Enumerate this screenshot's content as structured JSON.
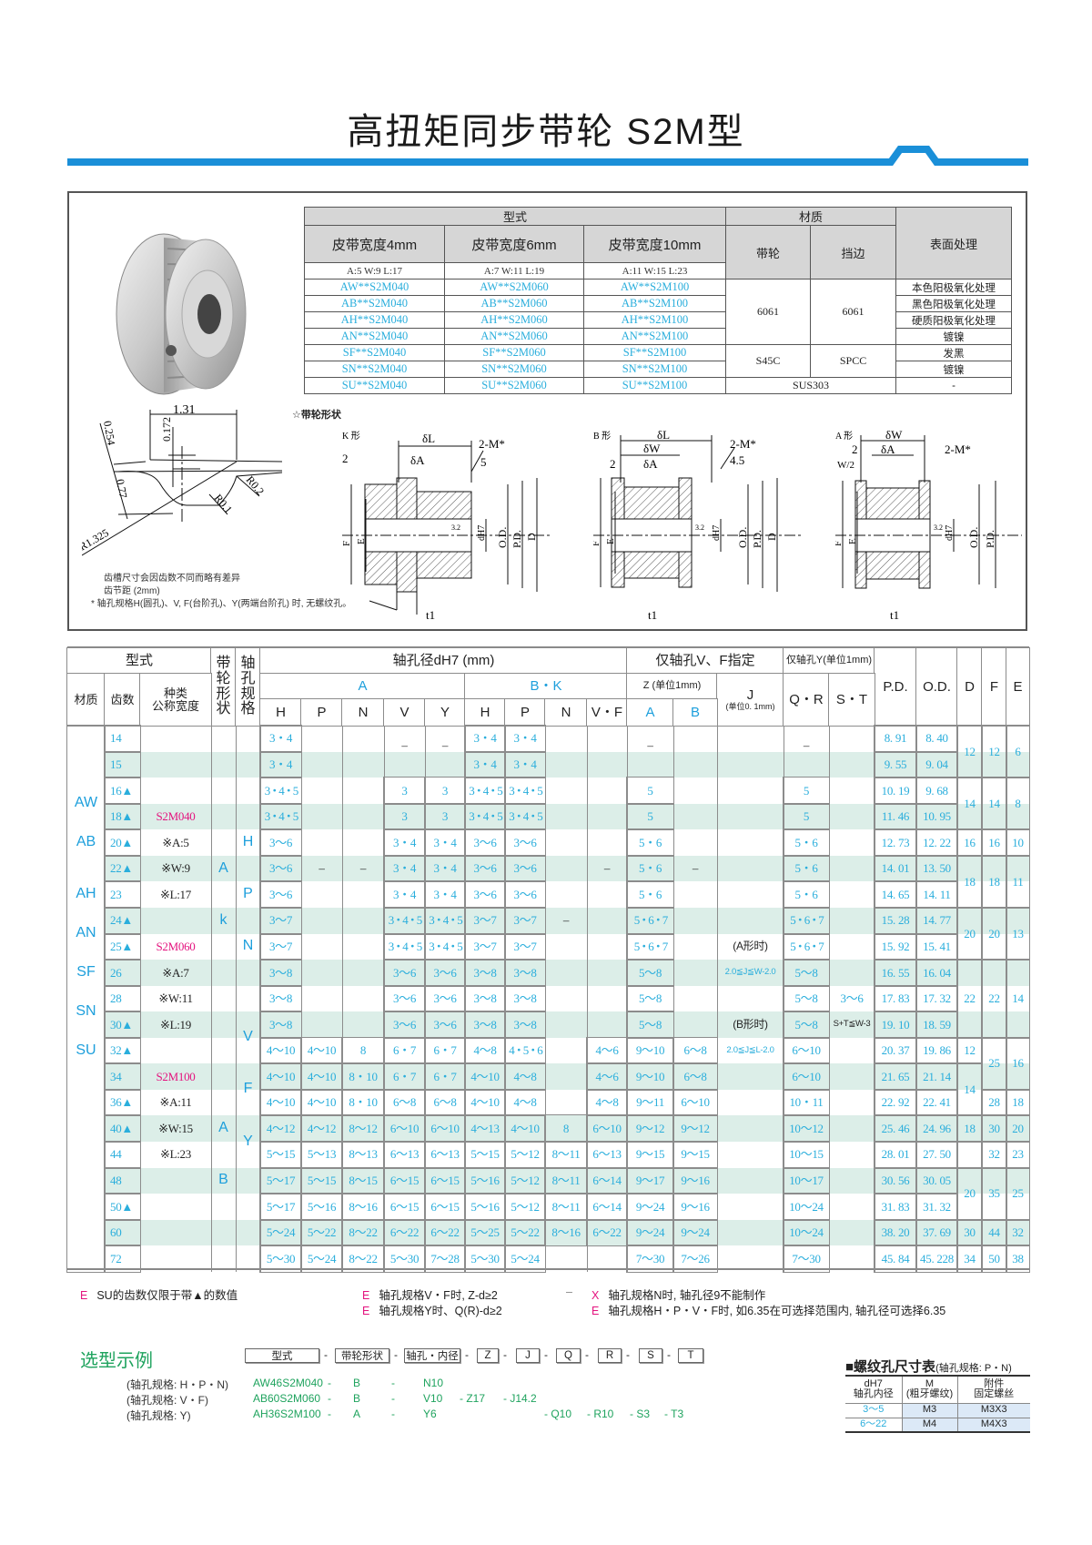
{
  "title": "高扭矩同步带轮 S2M型",
  "colors": {
    "accent_blue": "#1a8fd8",
    "value_cyan": "#2aaedc",
    "code_pink": "#e4147f",
    "stripe": "#dceee8",
    "example_green": "#1fa35e"
  },
  "material_table": {
    "header_type": "型式",
    "header_material": "材质",
    "header_surface": "表面处理",
    "widths": [
      {
        "label": "皮带宽度4mm",
        "dims": "A:5   W:9   L:17"
      },
      {
        "label": "皮带宽度6mm",
        "dims": "A:7   W:11   L:19"
      },
      {
        "label": "皮带宽度10mm",
        "dims": "A:11   W:15   L:23"
      }
    ],
    "mat_pulley": "带轮",
    "mat_flange": "挡边",
    "rows": [
      {
        "codes": [
          "AW**S2M040",
          "AW**S2M060",
          "AW**S2M100"
        ],
        "surface": "本色阳极氧化处理"
      },
      {
        "codes": [
          "AB**S2M040",
          "AB**S2M060",
          "AB**S2M100"
        ],
        "surface": "黑色阳极氧化处理"
      },
      {
        "codes": [
          "AH**S2M040",
          "AH**S2M060",
          "AH**S2M100"
        ],
        "surface": "硬质阳极氧化处理"
      },
      {
        "codes": [
          "AN**S2M040",
          "AN**S2M060",
          "AN**S2M100"
        ],
        "surface": "镀镍"
      },
      {
        "codes": [
          "SF**S2M040",
          "SF**S2M060",
          "SF**S2M100"
        ],
        "surface": "发黑"
      },
      {
        "codes": [
          "SN**S2M040",
          "SN**S2M060",
          "SN**S2M100"
        ],
        "surface": "镀镍"
      },
      {
        "codes": [
          "SU**S2M040",
          "SU**S2M060",
          "SU**S2M100"
        ],
        "surface": "-"
      }
    ],
    "groups": [
      {
        "pulley": "6061",
        "flange": "6061"
      },
      {
        "pulley": "S45C",
        "flange": "SPCC"
      },
      {
        "combined": "SUS303"
      }
    ]
  },
  "profile": {
    "labels": {
      "pitch_w": "1.31",
      "d1": "0.172",
      "d2": "0.254",
      "d3": "0.77",
      "r1": "R0.2",
      "r2": "R0.1",
      "r3": "R1.325"
    },
    "notes": [
      "齿槽尺寸会因齿数不同而略有差异",
      "齿节距 (2mm)",
      "*  轴孔规格H(圆孔)、V, F(台阶孔)、Y(两端台阶孔) 时, 无螺纹孔。"
    ]
  },
  "shapes": {
    "title": "☆带轮形状",
    "k": {
      "name": "K 形",
      "dL": "δL",
      "m": "2-M*",
      "two": "2",
      "dA": "δA",
      "five": "5",
      "F": "F",
      "E": "E",
      "ra": "3.2",
      "d": "dH7",
      "od": "O.D.",
      "pd": "P.D.",
      "D": "D",
      "t1": "t1"
    },
    "b": {
      "name": "B 形",
      "dL": "δL",
      "dW": "δW",
      "dA": "δA",
      "two": "2",
      "m": "2-M*",
      "v": "4.5",
      "F": "F",
      "E": "E",
      "ra": "3.2",
      "d": "dH7",
      "od": "O.D.",
      "pd": "P.D.",
      "D": "D",
      "t1": "t1"
    },
    "a": {
      "name": "A 形",
      "dW": "δW",
      "two": "2",
      "dA": "δA",
      "m": "2-M*",
      "w2": "W/2",
      "F": "F",
      "E": "E",
      "ra": "3.2",
      "d": "dH7",
      "od": "O.D.",
      "pd": "P.D.",
      "t1": "t1"
    }
  },
  "spec": {
    "headers": {
      "type": "型式",
      "shape": "带轮形状",
      "bore_spec": "轴孔规格",
      "bore_dia": "轴孔径dH7 (mm)",
      "vf_only": "仅轴孔V、F指定",
      "y_only": "仅轴孔Y(单位1mm)",
      "pd": "P.D.",
      "od": "O.D.",
      "d": "D",
      "f": "F",
      "e": "E",
      "material": "材质",
      "teeth": "齿数",
      "kind": "种类\n公称宽度",
      "group_a": "A",
      "group_bk": "B・K",
      "z": "Z  (单位1mm)",
      "j": "J",
      "j_unit": "(单位0. 1mm)",
      "qr": "Q・R",
      "st": "S・T",
      "sub": [
        "H",
        "P",
        "N",
        "V",
        "Y",
        "H",
        "P",
        "N",
        "V・F",
        "A",
        "B"
      ]
    },
    "materials": [
      {
        "code": "AW",
        "teeth": [
          "16▲",
          "18▲"
        ]
      },
      {
        "code": "AB",
        "teeth": [
          "20▲"
        ]
      },
      {
        "code": "AH",
        "teeth": [
          "23"
        ]
      },
      {
        "code": "AN",
        "teeth": [
          "24▲",
          "25▲"
        ]
      },
      {
        "code": "SF",
        "teeth": [
          "26"
        ]
      },
      {
        "code": "SN",
        "teeth": [
          "28",
          "30▲"
        ]
      },
      {
        "code": "SU",
        "teeth": [
          "32▲"
        ]
      }
    ],
    "shape_letters": [
      {
        "letter": "A",
        "teeth": [
          "22▲"
        ]
      },
      {
        "letter": "k",
        "teeth": [
          "24▲"
        ]
      },
      {
        "letter": "A",
        "teeth": [
          "40▲"
        ]
      },
      {
        "letter": "B",
        "teeth": [
          "48"
        ]
      }
    ],
    "spec_letters": [
      {
        "letter": "H",
        "teeth": [
          "20▲"
        ]
      },
      {
        "letter": "P",
        "teeth": [
          "23"
        ]
      },
      {
        "letter": "N",
        "teeth": [
          "25▲"
        ]
      },
      {
        "letter": "V",
        "teeth": [
          "30▲",
          "32▲"
        ]
      },
      {
        "letter": "F",
        "teeth": [
          "34",
          "36▲"
        ]
      },
      {
        "letter": "Y",
        "teeth": [
          "40▲",
          "44"
        ]
      }
    ],
    "rows": [
      {
        "teeth": "14",
        "kind": "",
        "values": [
          "3・4",
          "",
          "",
          "–",
          "–",
          "3・4",
          "3・4",
          "",
          "",
          "–",
          "",
          "",
          "–",
          "",
          "8. 91",
          "8. 40"
        ]
      },
      {
        "teeth": "15",
        "kind": "",
        "values": [
          "3・4",
          "",
          "",
          "",
          "",
          "3・4",
          "3・4",
          "",
          "",
          "",
          "",
          "",
          "",
          "",
          "9. 55",
          "9. 04"
        ]
      },
      {
        "teeth": "16▲",
        "kind": "",
        "values": [
          "3・4・5",
          "",
          "",
          "3",
          "3",
          "3・4・5",
          "3・4・5",
          "",
          "",
          "5",
          "",
          "",
          "5",
          "",
          "10. 19",
          "9. 68"
        ]
      },
      {
        "teeth": "18▲",
        "kind": "S2M040",
        "values": [
          "3・4・5",
          "",
          "",
          "3",
          "3",
          "3・4・5",
          "3・4・5",
          "",
          "",
          "5",
          "",
          "",
          "5",
          "",
          "11. 46",
          "10. 95"
        ]
      },
      {
        "teeth": "20▲",
        "kind": "※A:5",
        "values": [
          "3～6",
          "",
          "",
          "3・4",
          "3・4",
          "3～6",
          "3～6",
          "",
          "",
          "5・6",
          "",
          "",
          "5・6",
          "",
          "12. 73",
          "12. 22"
        ]
      },
      {
        "teeth": "22▲",
        "kind": "※W:9",
        "values": [
          "3～6",
          "–",
          "–",
          "3・4",
          "3・4",
          "3～6",
          "3～6",
          "",
          "–",
          "5・6",
          "–",
          "",
          "5・6",
          "",
          "14. 01",
          "13. 50"
        ]
      },
      {
        "teeth": "23",
        "kind": "※L:17",
        "values": [
          "3～6",
          "",
          "",
          "3・4",
          "3・4",
          "3～6",
          "3～6",
          "",
          "",
          "5・6",
          "",
          "",
          "5・6",
          "",
          "14. 65",
          "14. 11"
        ]
      },
      {
        "teeth": "24▲",
        "kind": "",
        "values": [
          "3～7",
          "",
          "",
          "3・4・5",
          "3・4・5",
          "3～7",
          "3～7",
          "–",
          "",
          "5・6・7",
          "",
          "",
          "5・6・7",
          "",
          "15. 28",
          "14. 77"
        ]
      },
      {
        "teeth": "25▲",
        "kind": "S2M060",
        "values": [
          "3～7",
          "",
          "",
          "3・4・5",
          "3・4・5",
          "3～7",
          "3～7",
          "",
          "",
          "5・6・7",
          "",
          "(A形时)",
          "5・6・7",
          "",
          "15. 92",
          "15. 41"
        ]
      },
      {
        "teeth": "26",
        "kind": "※A:7",
        "values": [
          "3～8",
          "",
          "",
          "3～6",
          "3～6",
          "3～8",
          "3～8",
          "",
          "",
          "5～8",
          "",
          "2.0≦J≦W-2.0",
          "5～8",
          "",
          "16. 55",
          "16. 04"
        ]
      },
      {
        "teeth": "28",
        "kind": "※W:11",
        "values": [
          "3～8",
          "",
          "",
          "3～6",
          "3～6",
          "3～8",
          "3～8",
          "",
          "",
          "5～8",
          "",
          "",
          "5～8",
          "3～6",
          "17. 83",
          "17. 32"
        ]
      },
      {
        "teeth": "30▲",
        "kind": "※L:19",
        "values": [
          "3～8",
          "",
          "",
          "3～6",
          "3～6",
          "3～8",
          "3～8",
          "",
          "",
          "5～8",
          "",
          "(B形时)",
          "5～8",
          "S+T≦W-3",
          "19. 10",
          "18. 59"
        ]
      },
      {
        "teeth": "32▲",
        "kind": "",
        "values": [
          "4～10",
          "4～10",
          "8",
          "6・7",
          "6・7",
          "4～8",
          "4・5・6",
          "",
          "4～6",
          "9～10",
          "6～8",
          "2.0≦J≦L-2.0",
          "6～10",
          "",
          "20. 37",
          "19. 86"
        ]
      },
      {
        "teeth": "34",
        "kind": "S2M100",
        "values": [
          "4～10",
          "4～10",
          "8・10",
          "6・7",
          "6・7",
          "4～10",
          "4～8",
          "",
          "4～6",
          "9～10",
          "6～8",
          "",
          "6～10",
          "",
          "21. 65",
          "21. 14"
        ]
      },
      {
        "teeth": "36▲",
        "kind": "※A:11",
        "values": [
          "4～10",
          "4～10",
          "8・10",
          "6～8",
          "6～8",
          "4～10",
          "4～8",
          "",
          "4～8",
          "9～11",
          "6～10",
          "",
          "10・11",
          "",
          "22. 92",
          "22. 41"
        ]
      },
      {
        "teeth": "40▲",
        "kind": "※W:15",
        "values": [
          "4～12",
          "4～12",
          "8～12",
          "6～10",
          "6～10",
          "4～13",
          "4～10",
          "8",
          "6～10",
          "9～12",
          "9～12",
          "",
          "10～12",
          "",
          "25. 46",
          "24. 96"
        ]
      },
      {
        "teeth": "44",
        "kind": "※L:23",
        "values": [
          "5～15",
          "5～13",
          "8～13",
          "6～13",
          "6～13",
          "5～15",
          "5～12",
          "8～11",
          "6～13",
          "9～15",
          "9～15",
          "",
          "10～15",
          "",
          "28. 01",
          "27. 50"
        ]
      },
      {
        "teeth": "48",
        "kind": "",
        "values": [
          "5～17",
          "5～15",
          "8～15",
          "6～15",
          "6～15",
          "5～16",
          "5～12",
          "8～11",
          "6～14",
          "9～17",
          "9～16",
          "",
          "10～17",
          "",
          "30. 56",
          "30. 05"
        ]
      },
      {
        "teeth": "50▲",
        "kind": "",
        "values": [
          "5～17",
          "5～16",
          "8～16",
          "6～15",
          "6～15",
          "5～16",
          "5～12",
          "8～11",
          "6～14",
          "9～24",
          "9～16",
          "",
          "10～24",
          "",
          "31. 83",
          "31. 32"
        ]
      },
      {
        "teeth": "60",
        "kind": "",
        "values": [
          "5～24",
          "5～22",
          "8～22",
          "6～22",
          "6～22",
          "5～25",
          "5～22",
          "8～16",
          "6～22",
          "9～24",
          "9～24",
          "",
          "10～24",
          "",
          "38. 20",
          "37. 69"
        ]
      },
      {
        "teeth": "72",
        "kind": "",
        "values": [
          "5～30",
          "5～24",
          "8～22",
          "5～30",
          "7～28",
          "5～30",
          "5～24",
          "",
          "",
          "7～30",
          "7～26",
          "",
          "7～30",
          "",
          "45. 84",
          "45. 228"
        ]
      }
    ],
    "D": [
      {
        "value": "12",
        "teeth": [
          "14",
          "15"
        ]
      },
      {
        "value": "14",
        "teeth": [
          "16▲",
          "18▲"
        ]
      },
      {
        "value": "16",
        "teeth": [
          "20▲"
        ]
      },
      {
        "value": "18",
        "teeth": [
          "22▲",
          "23"
        ]
      },
      {
        "value": "20",
        "teeth": [
          "24▲",
          "25▲"
        ]
      },
      {
        "value": "22",
        "teeth": [
          "26",
          "28",
          "30▲"
        ]
      },
      {
        "value": "12",
        "teeth": [
          "32▲"
        ]
      },
      {
        "value": "14",
        "teeth": [
          "34",
          "36▲"
        ]
      },
      {
        "value": "18",
        "teeth": [
          "40▲"
        ]
      },
      {
        "value": "",
        "teeth": [
          "44"
        ]
      },
      {
        "value": "20",
        "teeth": [
          "48",
          "50▲"
        ]
      },
      {
        "value": "30",
        "teeth": [
          "60"
        ]
      },
      {
        "value": "34",
        "teeth": [
          "72"
        ]
      }
    ],
    "F": [
      {
        "value": "12",
        "teeth": [
          "14",
          "15"
        ]
      },
      {
        "value": "14",
        "teeth": [
          "16▲",
          "18▲"
        ]
      },
      {
        "value": "16",
        "teeth": [
          "20▲"
        ]
      },
      {
        "value": "18",
        "teeth": [
          "22▲",
          "23"
        ]
      },
      {
        "value": "20",
        "teeth": [
          "24▲",
          "25▲"
        ]
      },
      {
        "value": "22",
        "teeth": [
          "26",
          "28",
          "30▲"
        ]
      },
      {
        "value": "25",
        "teeth": [
          "32▲",
          "34"
        ]
      },
      {
        "value": "28",
        "teeth": [
          "36▲"
        ]
      },
      {
        "value": "30",
        "teeth": [
          "40▲"
        ]
      },
      {
        "value": "32",
        "teeth": [
          "44"
        ]
      },
      {
        "value": "35",
        "teeth": [
          "48",
          "50▲"
        ]
      },
      {
        "value": "44",
        "teeth": [
          "60"
        ]
      },
      {
        "value": "50",
        "teeth": [
          "72"
        ]
      }
    ],
    "E": [
      {
        "value": "6",
        "teeth": [
          "14",
          "15"
        ]
      },
      {
        "value": "8",
        "teeth": [
          "16▲",
          "18▲"
        ]
      },
      {
        "value": "10",
        "teeth": [
          "20▲"
        ]
      },
      {
        "value": "11",
        "teeth": [
          "22▲",
          "23"
        ]
      },
      {
        "value": "13",
        "teeth": [
          "24▲",
          "25▲"
        ]
      },
      {
        "value": "14",
        "teeth": [
          "26",
          "28",
          "30▲"
        ]
      },
      {
        "value": "16",
        "teeth": [
          "32▲",
          "34"
        ]
      },
      {
        "value": "18",
        "teeth": [
          "36▲"
        ]
      },
      {
        "value": "20",
        "teeth": [
          "40▲"
        ]
      },
      {
        "value": "23",
        "teeth": [
          "44"
        ]
      },
      {
        "value": "25",
        "teeth": [
          "48",
          "50▲"
        ]
      },
      {
        "value": "32",
        "teeth": [
          "60"
        ]
      },
      {
        "value": "38",
        "teeth": [
          "72"
        ]
      }
    ]
  },
  "footnotes": {
    "n1": {
      "mark": "E",
      "text": "SU的齿数仅限于带▲的数值"
    },
    "n2": {
      "mark": "E",
      "text": "轴孔规格V・F时, Z-d≥2"
    },
    "n3": {
      "mark": "E",
      "text": "轴孔规格Y时、Q(R)-d≥2"
    },
    "dash": "–",
    "n4": {
      "mark": "X",
      "text": "轴孔规格N时, 轴孔径9不能制作"
    },
    "n5": {
      "mark": "E",
      "text": "轴孔规格H・P・V・F时, 如6.35在可选择范围内, 轴孔径可选择6.35"
    }
  },
  "selection": {
    "title": "选型示例",
    "fields": [
      "型式",
      "带轮形状",
      "轴孔・内径",
      "Z",
      "J",
      "Q",
      "R",
      "S",
      "T"
    ],
    "sep": "-",
    "examples": [
      {
        "label": "(轴孔规格: H・P・N)",
        "code": "AW46S2M040",
        "shape": "B",
        "bore": "N10",
        "z": "",
        "j": "",
        "q": "",
        "r": "",
        "s": "",
        "t": ""
      },
      {
        "label": "(轴孔规格: V・F)",
        "code": "AB60S2M060",
        "shape": "B",
        "bore": "V10",
        "z": "- Z17",
        "j": "- J14.2",
        "q": "",
        "r": "",
        "s": "",
        "t": ""
      },
      {
        "label": "(轴孔规格: Y)",
        "code": "AH36S2M100",
        "shape": "A",
        "bore": "Y6",
        "z": "",
        "j": "",
        "q": "- Q10",
        "r": "- R10",
        "s": "- S3",
        "t": "- T3"
      }
    ]
  },
  "screw_table": {
    "title": "■螺纹孔尺寸表",
    "subtitle": "(轴孔规格: P・N)",
    "headers": [
      "dH7\n轴孔内径",
      "M\n(粗牙螺纹)",
      "附件\n固定螺丝"
    ],
    "rows": [
      [
        "3～5",
        "M3",
        "M3X3"
      ],
      [
        "6～22",
        "M4",
        "M4X3"
      ]
    ]
  }
}
